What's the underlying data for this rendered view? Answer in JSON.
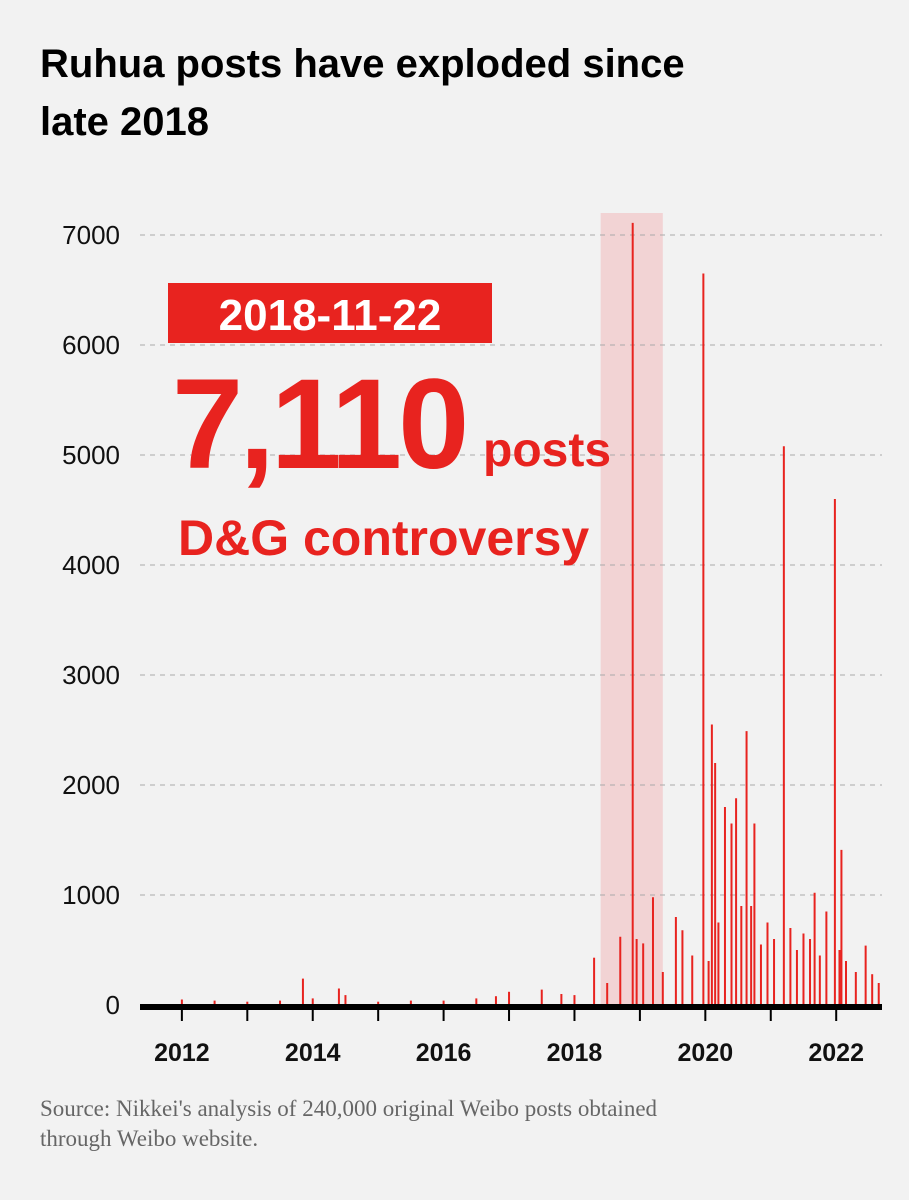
{
  "chart_data": {
    "type": "bar",
    "title": "Ruhua posts have exploded since late 2018",
    "annotation_date": "2018-11-22",
    "annotation_value": "7,110",
    "annotation_unit": "posts",
    "annotation_text": "D&G controversy",
    "source": "Source: Nikkei's analysis of 240,000 original Weibo posts obtained through Weibo website.",
    "color": "#e8231f",
    "highlight_color": "#f2d3d4",
    "highlight_x": [
      2018.4,
      2019.35
    ],
    "x": [
      2012.0,
      2012.5,
      2013.0,
      2013.5,
      2013.85,
      2014.0,
      2014.4,
      2014.5,
      2015.0,
      2015.5,
      2016.0,
      2016.5,
      2016.8,
      2017.0,
      2017.5,
      2017.8,
      2018.0,
      2018.3,
      2018.5,
      2018.7,
      2018.89,
      2018.95,
      2019.05,
      2019.2,
      2019.35,
      2019.55,
      2019.65,
      2019.8,
      2019.97,
      2020.05,
      2020.1,
      2020.15,
      2020.2,
      2020.3,
      2020.4,
      2020.47,
      2020.55,
      2020.63,
      2020.7,
      2020.75,
      2020.85,
      2020.95,
      2021.05,
      2021.2,
      2021.3,
      2021.4,
      2021.5,
      2021.6,
      2021.67,
      2021.75,
      2021.85,
      2021.98,
      2022.05,
      2022.08,
      2022.15,
      2022.3,
      2022.45,
      2022.55,
      2022.65
    ],
    "values": [
      50,
      40,
      30,
      40,
      240,
      60,
      150,
      90,
      30,
      40,
      40,
      60,
      80,
      120,
      140,
      100,
      90,
      430,
      200,
      620,
      7110,
      600,
      560,
      980,
      300,
      800,
      680,
      450,
      6650,
      400,
      2550,
      2200,
      750,
      1800,
      1650,
      1880,
      900,
      2490,
      900,
      1650,
      550,
      750,
      600,
      5080,
      700,
      500,
      650,
      600,
      1020,
      450,
      850,
      4600,
      500,
      1410,
      400,
      300,
      540,
      280,
      200
    ],
    "xlim": [
      2011.36,
      2022.7
    ],
    "xticks": [
      2012,
      2014,
      2016,
      2018,
      2020,
      2022
    ],
    "xminor": [
      2013,
      2015,
      2017,
      2019,
      2021
    ],
    "ylim": [
      0,
      7200
    ],
    "yticks": [
      0,
      1000,
      2000,
      3000,
      4000,
      5000,
      6000,
      7000
    ],
    "grid": true
  }
}
